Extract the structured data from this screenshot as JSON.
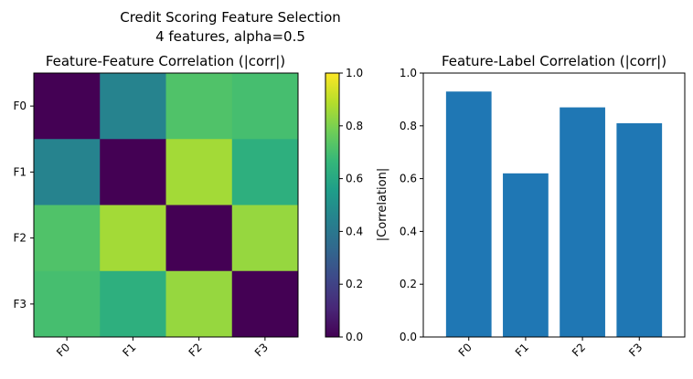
{
  "figure": {
    "suptitle_line1": "Credit Scoring Feature Selection",
    "suptitle_line2": "4 features, alpha=0.5"
  },
  "chart_data": [
    {
      "type": "heatmap",
      "title": "Feature-Feature Correlation (|corr|)",
      "x_categories": [
        "F0",
        "F1",
        "F2",
        "F3"
      ],
      "y_categories": [
        "F0",
        "F1",
        "F2",
        "F3"
      ],
      "values": [
        [
          0.0,
          0.45,
          0.72,
          0.7
        ],
        [
          0.45,
          0.0,
          0.86,
          0.63
        ],
        [
          0.72,
          0.86,
          0.0,
          0.84
        ],
        [
          0.7,
          0.63,
          0.84,
          0.0
        ]
      ],
      "colormap": "viridis",
      "colorbar": {
        "range": [
          0.0,
          1.0
        ],
        "ticks": [
          "0.0",
          "0.2",
          "0.4",
          "0.6",
          "0.8",
          "1.0"
        ]
      }
    },
    {
      "type": "bar",
      "title": "Feature-Label Correlation (|corr|)",
      "categories": [
        "F0",
        "F1",
        "F2",
        "F3"
      ],
      "values": [
        0.93,
        0.62,
        0.87,
        0.81
      ],
      "ylabel": "|Correlation|",
      "ylim": [
        0.0,
        1.0
      ],
      "yticks": [
        "0.0",
        "0.2",
        "0.4",
        "0.6",
        "0.8",
        "1.0"
      ],
      "bar_color": "#1f77b4"
    }
  ]
}
